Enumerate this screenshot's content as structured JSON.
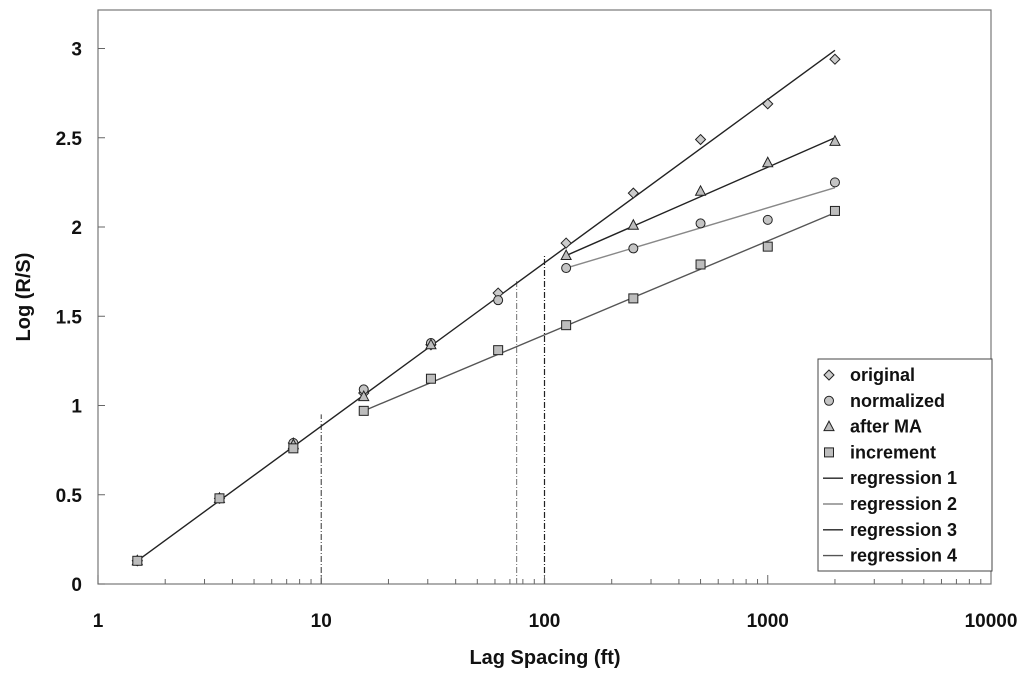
{
  "chart_data": {
    "type": "scatter",
    "xlabel": "Lag Spacing (ft)",
    "ylabel": "Log (R/S)",
    "x_scale": "log",
    "xlim": [
      1,
      10000
    ],
    "ylim": [
      0,
      3.1
    ],
    "x_ticks": [
      1,
      10,
      100,
      1000,
      10000
    ],
    "x_tick_labels": [
      "1",
      "10",
      "100",
      "1000",
      "10000"
    ],
    "y_ticks": [
      0,
      0.5,
      1,
      1.5,
      2,
      2.5,
      3
    ],
    "y_tick_labels": [
      "0",
      "0.5",
      "1",
      "1.5",
      "2",
      "2.5",
      "3"
    ],
    "grid": false,
    "legend_position": "bottom-right",
    "series": [
      {
        "name": "original",
        "marker": "diamond",
        "color": "#cccccc",
        "points": [
          [
            1.5,
            0.13
          ],
          [
            3.5,
            0.48
          ],
          [
            7.5,
            0.79
          ],
          [
            15.5,
            1.07
          ],
          [
            31,
            1.34
          ],
          [
            62,
            1.63
          ],
          [
            125,
            1.91
          ],
          [
            250,
            2.19
          ],
          [
            500,
            2.49
          ],
          [
            1000,
            2.69
          ],
          [
            2000,
            2.94
          ]
        ]
      },
      {
        "name": "normalized",
        "marker": "circle",
        "color": "#c4c4c4",
        "points": [
          [
            1.5,
            0.13
          ],
          [
            3.5,
            0.48
          ],
          [
            7.5,
            0.79
          ],
          [
            15.5,
            1.09
          ],
          [
            31,
            1.35
          ],
          [
            62,
            1.59
          ],
          [
            125,
            1.77
          ],
          [
            250,
            1.88
          ],
          [
            500,
            2.02
          ],
          [
            1000,
            2.04
          ],
          [
            2000,
            2.25
          ]
        ]
      },
      {
        "name": "after MA",
        "marker": "triangle",
        "color": "#bdbdbd",
        "points": [
          [
            1.5,
            0.13
          ],
          [
            3.5,
            0.48
          ],
          [
            7.5,
            0.78
          ],
          [
            15.5,
            1.05
          ],
          [
            31,
            1.34
          ],
          [
            125,
            1.84
          ],
          [
            250,
            2.01
          ],
          [
            500,
            2.2
          ],
          [
            1000,
            2.36
          ],
          [
            2000,
            2.48
          ]
        ]
      },
      {
        "name": "increment",
        "marker": "square",
        "color": "#bdbdbd",
        "points": [
          [
            1.5,
            0.13
          ],
          [
            3.5,
            0.48
          ],
          [
            7.5,
            0.76
          ],
          [
            15.5,
            0.97
          ],
          [
            31,
            1.15
          ],
          [
            62,
            1.31
          ],
          [
            125,
            1.45
          ],
          [
            250,
            1.6
          ],
          [
            500,
            1.79
          ],
          [
            1000,
            1.89
          ],
          [
            2000,
            2.09
          ]
        ]
      },
      {
        "name": "regression 1",
        "line": true,
        "color": "#222222",
        "points": [
          [
            1.5,
            0.13
          ],
          [
            2000,
            2.99
          ]
        ]
      },
      {
        "name": "regression 2",
        "line": true,
        "color": "#888888",
        "points": [
          [
            125,
            1.77
          ],
          [
            2000,
            2.22
          ]
        ]
      },
      {
        "name": "regression 3",
        "line": true,
        "color": "#222222",
        "points": [
          [
            125,
            1.84
          ],
          [
            2000,
            2.5
          ]
        ]
      },
      {
        "name": "regression 4",
        "line": true,
        "color": "#555555",
        "points": [
          [
            15.5,
            0.97
          ],
          [
            2000,
            2.08
          ]
        ]
      }
    ],
    "vertical_markers": [
      {
        "x": 10,
        "y_top": 0.95,
        "color": "#555555"
      },
      {
        "x": 75,
        "y_top": 1.7,
        "color": "#888888"
      },
      {
        "x": 100,
        "y_top": 1.84,
        "color": "#222222"
      }
    ]
  }
}
